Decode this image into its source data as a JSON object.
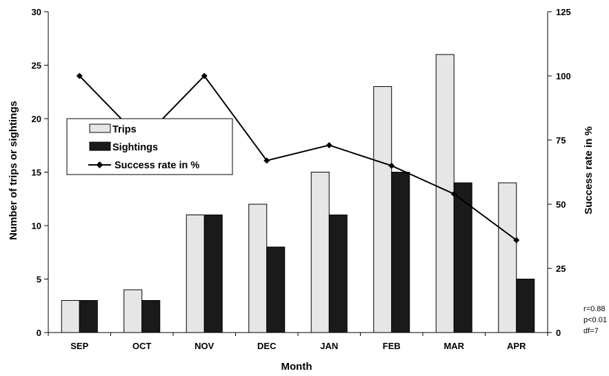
{
  "chart_data": {
    "type": "bar",
    "categories": [
      "SEP",
      "OCT",
      "NOV",
      "DEC",
      "JAN",
      "FEB",
      "MAR",
      "APR"
    ],
    "xlabel": "Month",
    "ylabel": "Number of trips or sightings",
    "y2label": "Success rate in %",
    "ylim": [
      0,
      30
    ],
    "y2lim": [
      0,
      125
    ],
    "yticks": [
      "0",
      "5",
      "10",
      "15",
      "20",
      "25",
      "30"
    ],
    "y2ticks": [
      "0",
      "25",
      "50",
      "75",
      "100",
      "125"
    ],
    "series": [
      {
        "name": "Trips",
        "kind": "bar",
        "color": "#e6e6e6",
        "values": [
          3,
          4,
          11,
          12,
          15,
          23,
          26,
          14
        ]
      },
      {
        "name": "Sightings",
        "kind": "bar",
        "color": "#1a1a1a",
        "values": [
          3,
          3,
          11,
          8,
          11,
          15,
          14,
          5
        ]
      },
      {
        "name": "Success rate in %",
        "kind": "line",
        "axis": "right",
        "color": "#000000",
        "marker": "diamond",
        "values": [
          100,
          75,
          100,
          67,
          73,
          65,
          54,
          36
        ]
      }
    ],
    "legend": [
      "Trips",
      "Sightings",
      "Success rate in %"
    ],
    "legend_position": "upper-left",
    "annotation_lines": [
      "r=0.88",
      "p<0.01",
      "df=7"
    ],
    "grid": false
  }
}
